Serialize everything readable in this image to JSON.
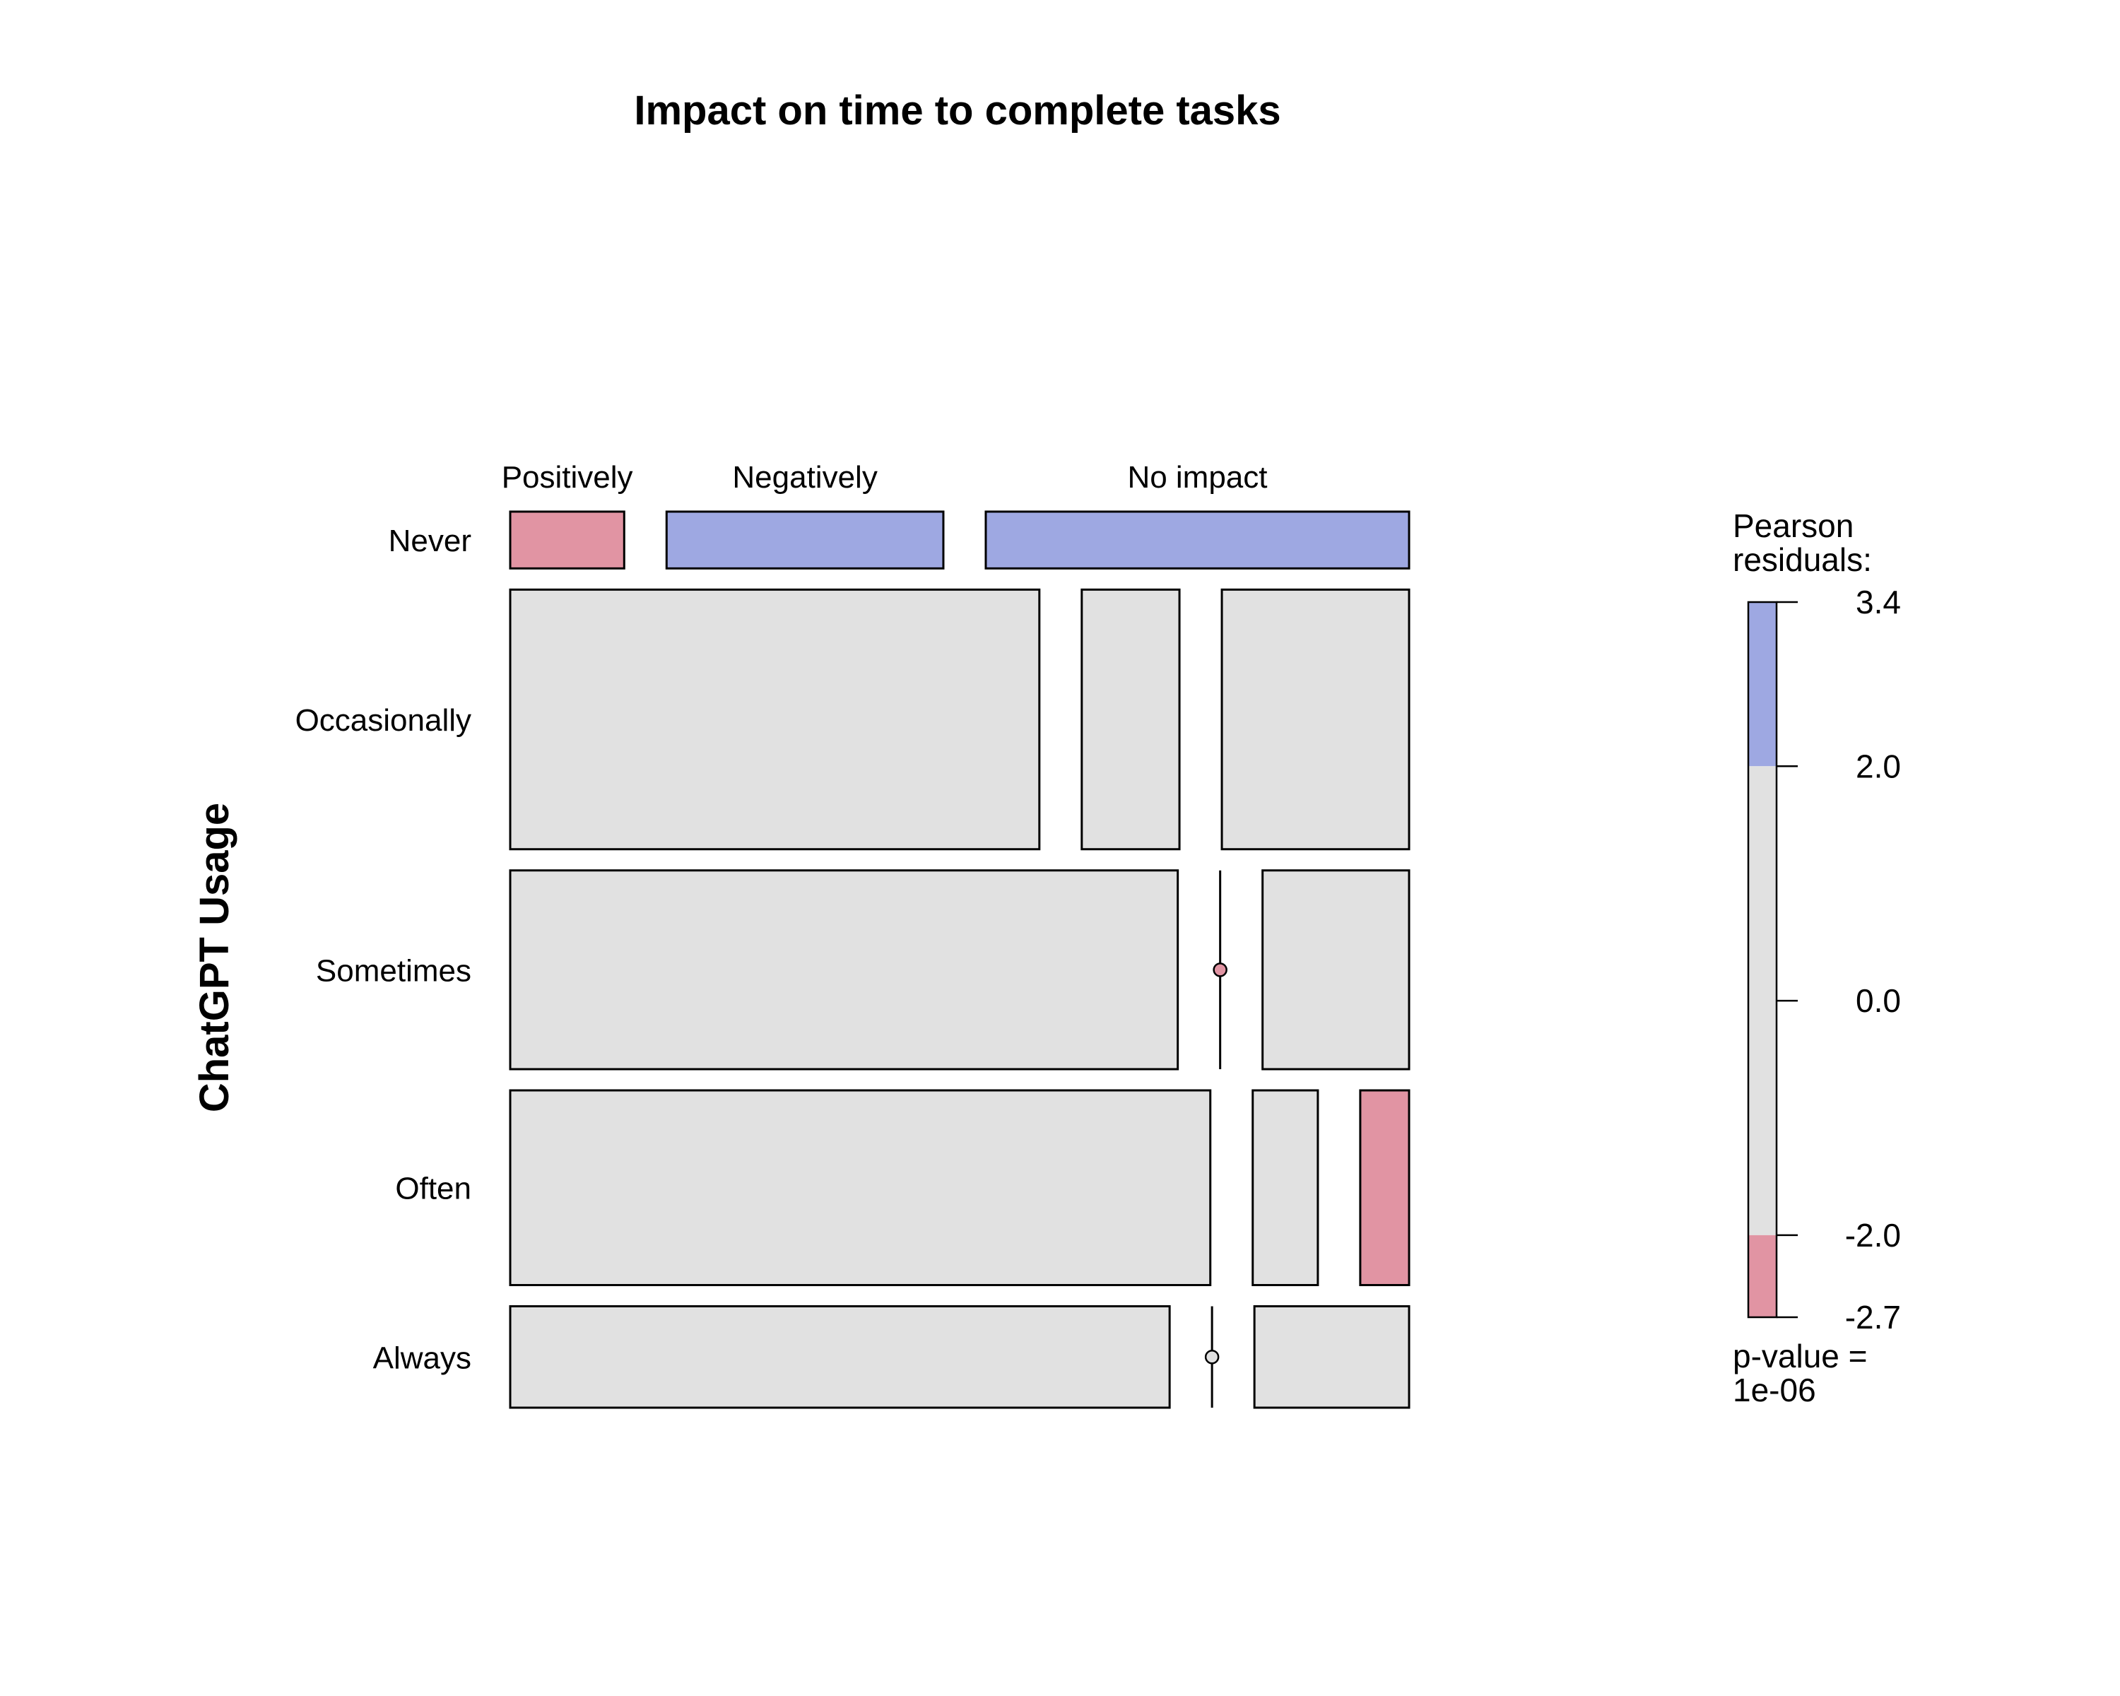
{
  "chart_data": {
    "type": "mosaic",
    "title": "Impact on time to complete tasks",
    "ylabel": "ChatGPT Usage",
    "column_categories": [
      "Positively",
      "Negatively",
      "No impact"
    ],
    "row_categories": [
      "Never",
      "Occasionally",
      "Sometimes",
      "Often",
      "Always"
    ],
    "row_proportions": [
      0.07,
      0.32,
      0.245,
      0.24,
      0.125
    ],
    "cell_proportions": [
      [
        0.14,
        0.34,
        0.52
      ],
      [
        0.65,
        0.12,
        0.23
      ],
      [
        0.82,
        0.0,
        0.18
      ],
      [
        0.86,
        0.08,
        0.06
      ],
      [
        0.81,
        0.0,
        0.19
      ]
    ],
    "residual_level": [
      [
        "low",
        "high",
        "high"
      ],
      [
        "mid",
        "mid",
        "mid"
      ],
      [
        "mid",
        "low",
        "mid"
      ],
      [
        "mid",
        "mid",
        "low"
      ],
      [
        "mid",
        "mid",
        "mid"
      ]
    ],
    "legend": {
      "title_line1": "Pearson",
      "title_line2": "residuals:",
      "max": 3.4,
      "min": -2.7,
      "tick_values": [
        3.4,
        2.0,
        0.0,
        -2.0,
        -2.7
      ],
      "tick_labels": [
        "3.4",
        "2.0",
        "0.0",
        "-2.0",
        "-2.7"
      ],
      "pvalue_line1": "p-value =",
      "pvalue_line2": "1e-06"
    },
    "colors": {
      "high": "#9EA8E2",
      "mid": "#E1E1E1",
      "low": "#E194A3",
      "border": "#000000"
    }
  }
}
